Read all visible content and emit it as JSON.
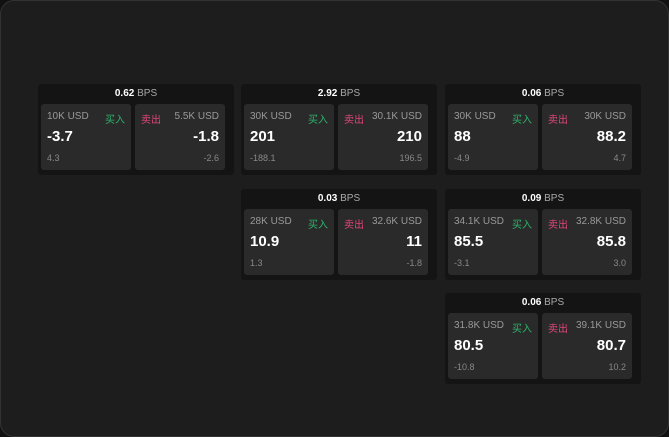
{
  "colors": {
    "buy": "#2db36b",
    "sell": "#e0457b",
    "background": "#1d1d1d"
  },
  "labels": {
    "buy": "买入",
    "sell": "卖出",
    "unit": "BPS"
  },
  "widgets": [
    {
      "spread": "0.62",
      "bid": {
        "size": "10K USD",
        "price": "-3.7",
        "change": "4.3"
      },
      "ask": {
        "size": "5.5K USD",
        "price": "-1.8",
        "change": "-2.6"
      }
    },
    {
      "spread": "2.92",
      "bid": {
        "size": "30K USD",
        "price": "201",
        "change": "-188.1"
      },
      "ask": {
        "size": "30.1K USD",
        "price": "210",
        "change": "196.5"
      }
    },
    {
      "spread": "0.06",
      "bid": {
        "size": "30K USD",
        "price": "88",
        "change": "-4.9"
      },
      "ask": {
        "size": "30K USD",
        "price": "88.2",
        "change": "4.7"
      }
    },
    {
      "spread": "0.03",
      "bid": {
        "size": "28K USD",
        "price": "10.9",
        "change": "1.3"
      },
      "ask": {
        "size": "32.6K USD",
        "price": "11",
        "change": "-1.8"
      }
    },
    {
      "spread": "0.09",
      "bid": {
        "size": "34.1K USD",
        "price": "85.5",
        "change": "-3.1"
      },
      "ask": {
        "size": "32.8K USD",
        "price": "85.8",
        "change": "3.0"
      }
    },
    {
      "spread": "0.06",
      "bid": {
        "size": "31.8K USD",
        "price": "80.5",
        "change": "-10.8"
      },
      "ask": {
        "size": "39.1K USD",
        "price": "80.7",
        "change": "10.2"
      }
    }
  ]
}
